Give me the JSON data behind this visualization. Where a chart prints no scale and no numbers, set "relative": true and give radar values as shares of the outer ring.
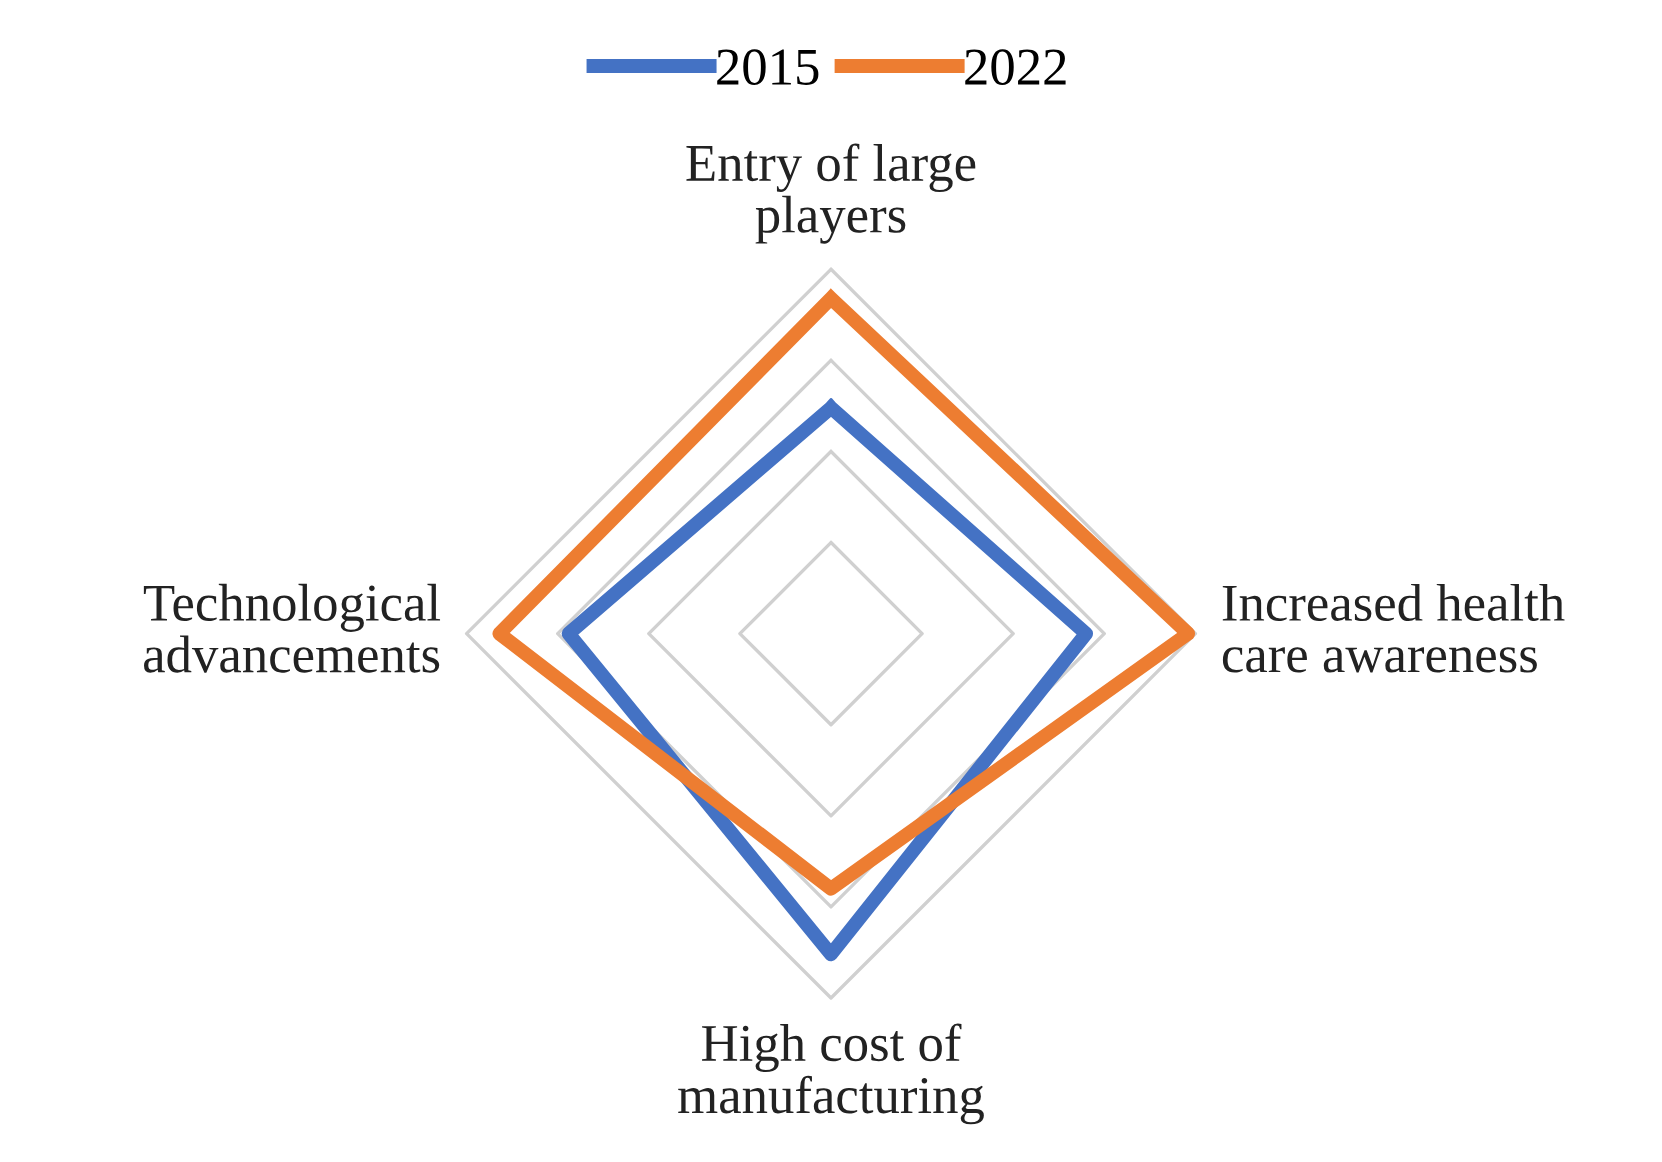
{
  "chart_data": {
    "type": "radar",
    "relative": true,
    "grid": true,
    "legend": "top",
    "marker": "none",
    "line_style": "solid",
    "categories": [
      "Entry of large\nplayers",
      "Increased health\ncare awareness",
      "High cost of\nmanufacturing",
      "Technological\nadvancements"
    ],
    "series": [
      {
        "name": "2015",
        "color": "#4472c4",
        "values": [
          0.62,
          0.7,
          0.88,
          0.72
        ]
      },
      {
        "name": "2022",
        "color": "#ed7d31",
        "values": [
          0.92,
          0.98,
          0.7,
          0.91
        ]
      }
    ]
  }
}
